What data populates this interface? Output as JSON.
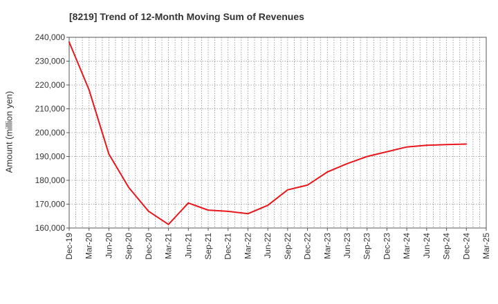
{
  "chart_data": {
    "type": "line",
    "title": "[8219]  Trend of 12-Month Moving Sum of Revenues",
    "xlabel": "",
    "ylabel": "Amount (million yen)",
    "ylim": [
      160000,
      240000
    ],
    "yticks": [
      160000,
      170000,
      180000,
      190000,
      200000,
      210000,
      220000,
      230000,
      240000
    ],
    "ytick_labels": [
      "160,000",
      "170,000",
      "180,000",
      "190,000",
      "200,000",
      "210,000",
      "220,000",
      "230,000",
      "240,000"
    ],
    "x_tick_labels": [
      "Dec-19",
      "Mar-20",
      "Jun-20",
      "Sep-20",
      "Dec-20",
      "Mar-21",
      "Jun-21",
      "Sep-21",
      "Dec-21",
      "Mar-22",
      "Jun-22",
      "Sep-22",
      "Dec-22",
      "Mar-23",
      "Jun-23",
      "Sep-23",
      "Dec-23",
      "Mar-24",
      "Jun-24",
      "Sep-24",
      "Dec-24",
      "Mar-25"
    ],
    "grid": true,
    "colors": {
      "line": "#e8161b",
      "grid": "#8c8c8c",
      "axis": "#555555"
    },
    "series": [
      {
        "x": [
          "Dec-19",
          "Mar-20",
          "Jun-20",
          "Sep-20",
          "Dec-20",
          "Mar-21",
          "Jun-21",
          "Sep-21",
          "Dec-21",
          "Mar-22",
          "Jun-22",
          "Sep-22",
          "Dec-22",
          "Mar-23",
          "Jun-23",
          "Sep-23",
          "Dec-23",
          "Mar-24",
          "Jun-24",
          "Sep-24",
          "Dec-24"
        ],
        "values": [
          238000,
          218000,
          191000,
          177000,
          167000,
          161500,
          170500,
          167500,
          167000,
          166000,
          169500,
          176000,
          178000,
          183500,
          187000,
          190000,
          192000,
          194000,
          194700,
          195000,
          195200
        ]
      }
    ]
  }
}
